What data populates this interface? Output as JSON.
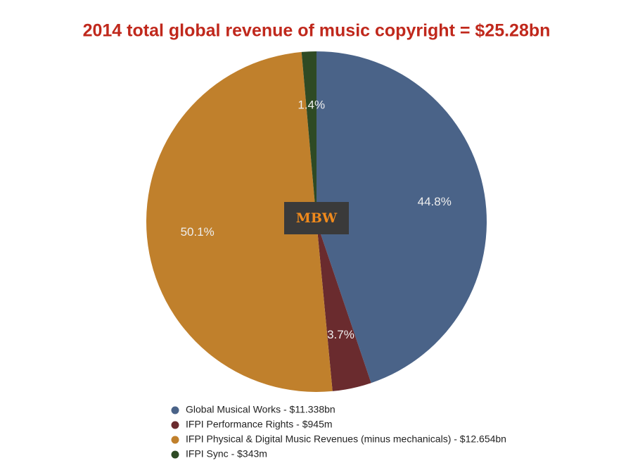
{
  "chart_data": {
    "type": "pie",
    "title": "2014 total global revenue of music copyright = $25.28bn",
    "watermark": "MBW",
    "categories": [
      "Global Musical Works - $11.338bn",
      "IFPI Performance Rights - $945m",
      "IFPI Physical & Digital Music Revenues (minus mechanicals) - $12.654bn",
      "IFPI Sync - $343m"
    ],
    "values": [
      44.8,
      3.7,
      50.1,
      1.4
    ],
    "value_labels": [
      "44.8%",
      "3.7%",
      "50.1%",
      "1.4%"
    ],
    "colors": [
      "#4a6388",
      "#6a2b2e",
      "#c0802c",
      "#2e4a24"
    ]
  }
}
